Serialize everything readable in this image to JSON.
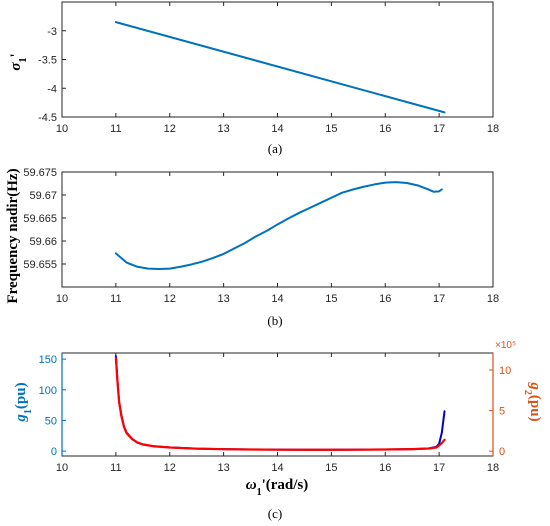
{
  "captions": [
    "(a)",
    "(b)",
    "(c)"
  ],
  "chart_data": [
    {
      "type": "line",
      "title": "",
      "xlabel": "",
      "ylabel": "σ₁'",
      "xlim": [
        10,
        18
      ],
      "ylim": [
        -4.5,
        -2.5
      ],
      "xticks": [
        10,
        11,
        12,
        13,
        14,
        15,
        16,
        17,
        18
      ],
      "yticks": [
        -3,
        -3.5,
        -4,
        -4.5
      ],
      "grid": false,
      "series": [
        {
          "color": "#0072BD",
          "x": [
            11.0,
            17.1
          ],
          "y": [
            -2.85,
            -4.42
          ]
        }
      ]
    },
    {
      "type": "line",
      "title": "",
      "xlabel": "",
      "ylabel": "Frequency nadir(Hz)",
      "xlim": [
        10,
        18
      ],
      "ylim": [
        59.65,
        59.675
      ],
      "xticks": [
        10,
        11,
        12,
        13,
        14,
        15,
        16,
        17,
        18
      ],
      "yticks": [
        59.675,
        59.67,
        59.665,
        59.66,
        59.655
      ],
      "grid": false,
      "series": [
        {
          "color": "#0072BD",
          "x": [
            11.0,
            11.2,
            11.4,
            11.6,
            11.8,
            12.0,
            12.2,
            12.4,
            12.6,
            12.8,
            13.0,
            13.2,
            13.4,
            13.6,
            13.8,
            14.0,
            14.2,
            14.4,
            14.6,
            14.8,
            15.0,
            15.2,
            15.4,
            15.6,
            15.8,
            16.0,
            16.2,
            16.4,
            16.6,
            16.8,
            16.9,
            17.0,
            17.05
          ],
          "y": [
            59.6573,
            59.6553,
            59.6544,
            59.654,
            59.6539,
            59.654,
            59.6544,
            59.6549,
            59.6555,
            59.6563,
            59.6572,
            59.6584,
            59.6596,
            59.661,
            59.6622,
            59.6636,
            59.6649,
            59.6661,
            59.6672,
            59.6683,
            59.6694,
            59.6705,
            59.6712,
            59.6718,
            59.6723,
            59.6727,
            59.6728,
            59.6726,
            59.6721,
            59.6712,
            59.6707,
            59.6708,
            59.6712
          ]
        }
      ]
    },
    {
      "type": "line",
      "title": "",
      "xlabel": "ω₁'(rad/s)",
      "ylabel": "g₁(pu)",
      "ylabel_right": "g₂(pu)",
      "right_exponent": "×10⁵",
      "xlim": [
        10,
        18
      ],
      "ylim": [
        -8,
        160
      ],
      "ylim_right": [
        -0.6,
        12.1
      ],
      "xticks": [
        10,
        11,
        12,
        13,
        14,
        15,
        16,
        17,
        18
      ],
      "yticks": [
        0,
        50,
        100,
        150
      ],
      "yticks_right": [
        0,
        5,
        10
      ],
      "left_axis_color": "#0072BD",
      "right_axis_color": "#D95319",
      "grid": false,
      "series": [
        {
          "axis": "left",
          "color": "#0000CC",
          "x": [
            11.0,
            11.03,
            11.06,
            11.1,
            11.15,
            11.2,
            11.3,
            11.4,
            11.5,
            11.7,
            12.0,
            12.5,
            13.0,
            13.5,
            14.0,
            14.5,
            15.0,
            15.5,
            16.0,
            16.5,
            16.8,
            16.95,
            17.0,
            17.05,
            17.1
          ],
          "y": [
            155,
            115,
            80,
            60,
            40,
            30,
            20,
            14,
            11,
            8,
            6,
            4,
            3.2,
            2.7,
            2.4,
            2.3,
            2.3,
            2.4,
            2.7,
            3.3,
            4.3,
            7,
            12,
            30,
            65
          ]
        },
        {
          "axis": "right",
          "color": "#FF0000",
          "x": [
            11.0,
            11.03,
            11.06,
            11.1,
            11.15,
            11.2,
            11.3,
            11.4,
            11.5,
            11.7,
            12.0,
            12.5,
            13.0,
            13.5,
            14.0,
            14.5,
            15.0,
            15.5,
            16.0,
            16.5,
            16.8,
            16.95,
            17.0,
            17.05,
            17.1
          ],
          "y": [
            11.5,
            8.5,
            6.1,
            4.4,
            3.0,
            2.2,
            1.5,
            1.05,
            0.82,
            0.6,
            0.45,
            0.3,
            0.24,
            0.2,
            0.18,
            0.17,
            0.17,
            0.18,
            0.2,
            0.25,
            0.32,
            0.45,
            0.7,
            1.0,
            1.4
          ]
        }
      ]
    }
  ]
}
